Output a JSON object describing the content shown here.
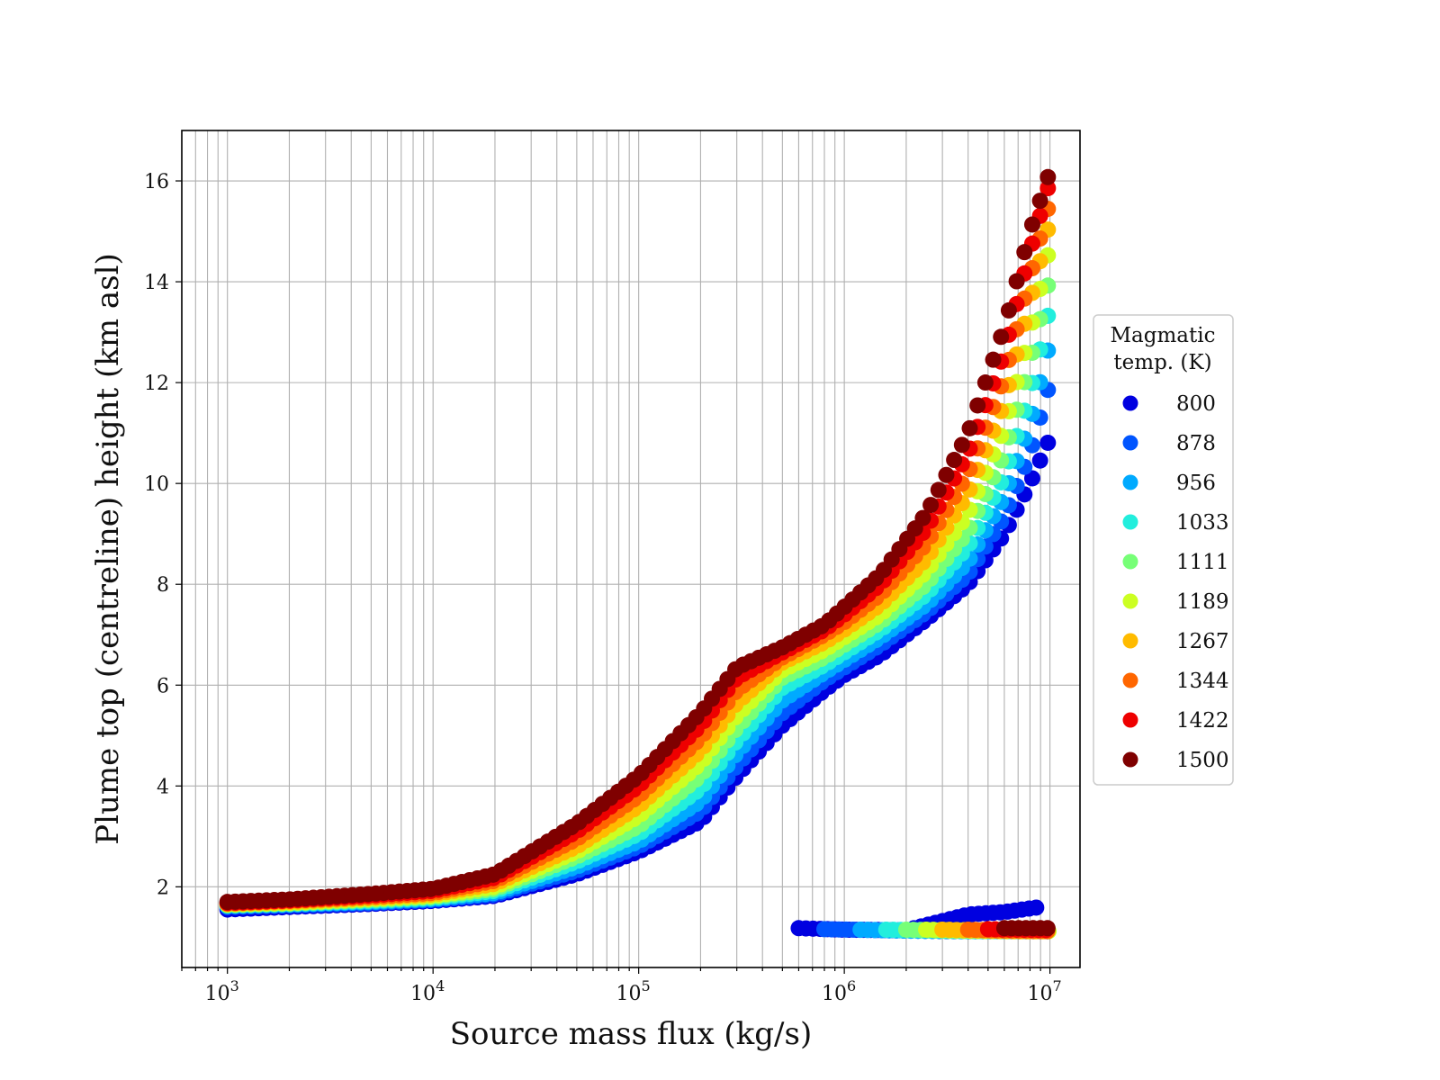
{
  "chart_data": {
    "type": "scatter",
    "xlabel": "Source mass flux (kg/s)",
    "ylabel": "Plume top (centreline) height (km asl)",
    "xscale": "log",
    "xlim": [
      600,
      14000000
    ],
    "ylim": [
      0.4,
      17
    ],
    "grid": true,
    "x_tick_exponents": [
      "3",
      "4",
      "5",
      "6",
      "7"
    ],
    "x_tick_base": "10",
    "y_ticks": [
      2,
      4,
      6,
      8,
      10,
      12,
      14,
      16
    ],
    "legend": {
      "title_lines": [
        "Magmatic",
        "temp. (K)"
      ],
      "placement": "outside-right"
    },
    "series": [
      {
        "name": "800",
        "color": "#0000e0",
        "points": [
          [
            1000,
            1.55
          ],
          [
            2000,
            1.6
          ],
          [
            5000,
            1.66
          ],
          [
            10000,
            1.72
          ],
          [
            20000,
            1.82
          ],
          [
            50000,
            2.25
          ],
          [
            100000,
            2.7
          ],
          [
            200000,
            3.3
          ],
          [
            300000,
            4.2
          ],
          [
            500000,
            5.2
          ],
          [
            800000,
            5.9
          ],
          [
            1000000,
            6.2
          ],
          [
            1500000,
            6.6
          ],
          [
            2500000,
            7.3
          ],
          [
            4000000,
            8.0
          ],
          [
            6000000,
            9.0
          ],
          [
            8000000,
            10.0
          ],
          [
            10000000,
            10.9
          ]
        ],
        "branch": [
          [
            600000,
            1.18
          ],
          [
            1000000,
            1.15
          ],
          [
            2000000,
            1.14
          ],
          [
            4000000,
            1.45
          ],
          [
            6000000,
            1.5
          ],
          [
            9000000,
            1.6
          ]
        ]
      },
      {
        "name": "878",
        "color": "#0055ff",
        "points": [
          [
            1000,
            1.6
          ],
          [
            2000,
            1.63
          ],
          [
            5000,
            1.68
          ],
          [
            10000,
            1.74
          ],
          [
            20000,
            1.85
          ],
          [
            50000,
            2.32
          ],
          [
            100000,
            2.8
          ],
          [
            200000,
            3.5
          ],
          [
            300000,
            4.4
          ],
          [
            500000,
            5.45
          ],
          [
            800000,
            6.1
          ],
          [
            1000000,
            6.35
          ],
          [
            1500000,
            6.8
          ],
          [
            2500000,
            7.45
          ],
          [
            4000000,
            8.2
          ],
          [
            6000000,
            9.35
          ],
          [
            8000000,
            10.6
          ],
          [
            10000000,
            12.0
          ]
        ],
        "branch": [
          [
            800000,
            1.16
          ],
          [
            1500000,
            1.14
          ],
          [
            3000000,
            1.12
          ],
          [
            6000000,
            1.12
          ],
          [
            10000000,
            1.12
          ]
        ]
      },
      {
        "name": "956",
        "color": "#00aaff",
        "points": [
          [
            1000,
            1.62
          ],
          [
            2000,
            1.65
          ],
          [
            5000,
            1.7
          ],
          [
            10000,
            1.76
          ],
          [
            20000,
            1.88
          ],
          [
            50000,
            2.4
          ],
          [
            100000,
            2.9
          ],
          [
            200000,
            3.7
          ],
          [
            300000,
            4.65
          ],
          [
            500000,
            5.7
          ],
          [
            800000,
            6.25
          ],
          [
            1000000,
            6.5
          ],
          [
            1500000,
            6.95
          ],
          [
            2500000,
            7.6
          ],
          [
            4000000,
            8.45
          ],
          [
            6000000,
            9.75
          ],
          [
            8000000,
            11.2
          ],
          [
            10000000,
            12.8
          ]
        ],
        "branch": [
          [
            1200000,
            1.15
          ],
          [
            2000000,
            1.13
          ],
          [
            4000000,
            1.12
          ],
          [
            7000000,
            1.12
          ],
          [
            10000000,
            1.12
          ]
        ]
      },
      {
        "name": "1033",
        "color": "#22eedd",
        "points": [
          [
            1000,
            1.63
          ],
          [
            2000,
            1.66
          ],
          [
            5000,
            1.72
          ],
          [
            10000,
            1.78
          ],
          [
            20000,
            1.92
          ],
          [
            50000,
            2.5
          ],
          [
            100000,
            3.05
          ],
          [
            200000,
            3.95
          ],
          [
            300000,
            4.9
          ],
          [
            500000,
            5.95
          ],
          [
            800000,
            6.4
          ],
          [
            1000000,
            6.65
          ],
          [
            1500000,
            7.1
          ],
          [
            2500000,
            7.8
          ],
          [
            4000000,
            8.75
          ],
          [
            6000000,
            10.15
          ],
          [
            8000000,
            11.8
          ],
          [
            10000000,
            13.5
          ]
        ],
        "branch": [
          [
            1600000,
            1.15
          ],
          [
            3000000,
            1.13
          ],
          [
            5000000,
            1.12
          ],
          [
            8000000,
            1.12
          ],
          [
            10000000,
            1.12
          ]
        ]
      },
      {
        "name": "1111",
        "color": "#77ff77",
        "points": [
          [
            1000,
            1.64
          ],
          [
            2000,
            1.67
          ],
          [
            5000,
            1.74
          ],
          [
            10000,
            1.8
          ],
          [
            20000,
            1.96
          ],
          [
            50000,
            2.6
          ],
          [
            100000,
            3.2
          ],
          [
            200000,
            4.2
          ],
          [
            300000,
            5.15
          ],
          [
            500000,
            6.15
          ],
          [
            800000,
            6.55
          ],
          [
            1000000,
            6.8
          ],
          [
            1500000,
            7.25
          ],
          [
            2500000,
            8.0
          ],
          [
            4000000,
            9.05
          ],
          [
            6000000,
            10.6
          ],
          [
            8000000,
            12.4
          ],
          [
            10000000,
            14.1
          ]
        ],
        "branch": [
          [
            2000000,
            1.15
          ],
          [
            3500000,
            1.13
          ],
          [
            6000000,
            1.12
          ],
          [
            10000000,
            1.12
          ]
        ]
      },
      {
        "name": "1189",
        "color": "#ccff22",
        "points": [
          [
            1000,
            1.65
          ],
          [
            2000,
            1.68
          ],
          [
            5000,
            1.76
          ],
          [
            10000,
            1.82
          ],
          [
            20000,
            2.0
          ],
          [
            50000,
            2.7
          ],
          [
            100000,
            3.4
          ],
          [
            200000,
            4.45
          ],
          [
            300000,
            5.4
          ],
          [
            500000,
            6.3
          ],
          [
            800000,
            6.7
          ],
          [
            1000000,
            6.95
          ],
          [
            1500000,
            7.4
          ],
          [
            2500000,
            8.25
          ],
          [
            4000000,
            9.4
          ],
          [
            6000000,
            11.1
          ],
          [
            8000000,
            13.0
          ],
          [
            10000000,
            14.7
          ]
        ],
        "branch": [
          [
            2500000,
            1.15
          ],
          [
            4000000,
            1.13
          ],
          [
            7000000,
            1.12
          ],
          [
            10000000,
            1.12
          ]
        ]
      },
      {
        "name": "1267",
        "color": "#ffbb00",
        "points": [
          [
            1000,
            1.66
          ],
          [
            2000,
            1.7
          ],
          [
            5000,
            1.78
          ],
          [
            10000,
            1.85
          ],
          [
            20000,
            2.06
          ],
          [
            50000,
            2.8
          ],
          [
            100000,
            3.6
          ],
          [
            200000,
            4.7
          ],
          [
            300000,
            5.65
          ],
          [
            500000,
            6.45
          ],
          [
            800000,
            6.85
          ],
          [
            1000000,
            7.1
          ],
          [
            1500000,
            7.6
          ],
          [
            2500000,
            8.5
          ],
          [
            4000000,
            9.8
          ],
          [
            6000000,
            11.6
          ],
          [
            8000000,
            13.6
          ],
          [
            10000000,
            15.2
          ]
        ],
        "branch": [
          [
            3000000,
            1.15
          ],
          [
            5000000,
            1.13
          ],
          [
            8000000,
            1.12
          ],
          [
            10000000,
            1.12
          ]
        ]
      },
      {
        "name": "1344",
        "color": "#ff6600",
        "points": [
          [
            1000,
            1.67
          ],
          [
            2000,
            1.72
          ],
          [
            5000,
            1.8
          ],
          [
            10000,
            1.88
          ],
          [
            20000,
            2.12
          ],
          [
            50000,
            2.95
          ],
          [
            100000,
            3.8
          ],
          [
            200000,
            4.95
          ],
          [
            300000,
            5.9
          ],
          [
            500000,
            6.55
          ],
          [
            800000,
            7.0
          ],
          [
            1000000,
            7.25
          ],
          [
            1500000,
            7.8
          ],
          [
            2500000,
            8.8
          ],
          [
            4000000,
            10.2
          ],
          [
            6000000,
            12.1
          ],
          [
            8000000,
            14.1
          ],
          [
            10000000,
            15.6
          ]
        ],
        "branch": [
          [
            4000000,
            1.15
          ],
          [
            6000000,
            1.13
          ],
          [
            10000000,
            1.12
          ]
        ]
      },
      {
        "name": "1422",
        "color": "#ee0000",
        "points": [
          [
            1000,
            1.68
          ],
          [
            2000,
            1.73
          ],
          [
            5000,
            1.83
          ],
          [
            10000,
            1.92
          ],
          [
            20000,
            2.18
          ],
          [
            50000,
            3.1
          ],
          [
            100000,
            4.0
          ],
          [
            200000,
            5.2
          ],
          [
            300000,
            6.15
          ],
          [
            500000,
            6.65
          ],
          [
            800000,
            7.1
          ],
          [
            1000000,
            7.4
          ],
          [
            1500000,
            8.0
          ],
          [
            2500000,
            9.1
          ],
          [
            4000000,
            10.6
          ],
          [
            6000000,
            12.6
          ],
          [
            8000000,
            14.6
          ],
          [
            10000000,
            16.0
          ]
        ],
        "branch": [
          [
            5000000,
            1.16
          ],
          [
            7000000,
            1.15
          ],
          [
            10000000,
            1.14
          ]
        ]
      },
      {
        "name": "1500",
        "color": "#7f0000",
        "points": [
          [
            1000,
            1.7
          ],
          [
            2000,
            1.75
          ],
          [
            5000,
            1.86
          ],
          [
            10000,
            1.96
          ],
          [
            20000,
            2.25
          ],
          [
            50000,
            3.25
          ],
          [
            100000,
            4.2
          ],
          [
            200000,
            5.45
          ],
          [
            300000,
            6.35
          ],
          [
            500000,
            6.75
          ],
          [
            800000,
            7.2
          ],
          [
            1000000,
            7.55
          ],
          [
            1500000,
            8.2
          ],
          [
            2500000,
            9.4
          ],
          [
            4000000,
            11.0
          ],
          [
            6000000,
            13.1
          ],
          [
            8000000,
            15.0
          ],
          [
            10000000,
            16.2
          ]
        ],
        "branch": [
          [
            6000000,
            1.18
          ],
          [
            8000000,
            1.18
          ],
          [
            10000000,
            1.18
          ]
        ]
      }
    ]
  }
}
